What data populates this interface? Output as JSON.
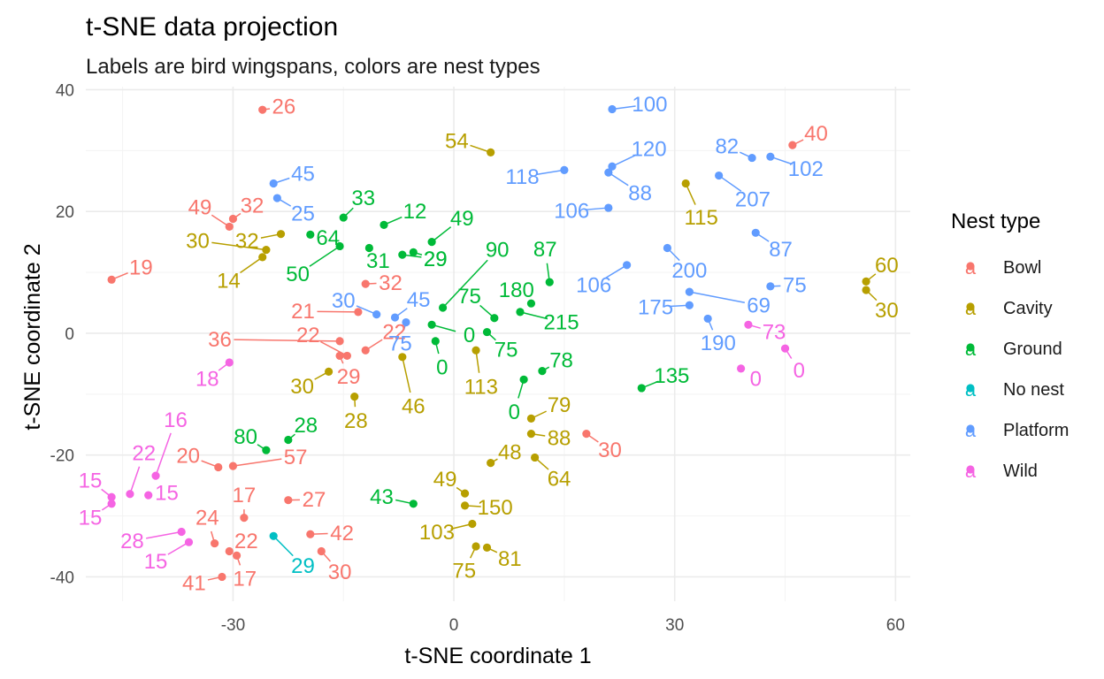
{
  "chart_data": {
    "type": "scatter",
    "title": "t-SNE data projection",
    "subtitle": "Labels are bird wingspans, colors are nest types",
    "xlabel": "t-SNE coordinate 1",
    "ylabel": "t-SNE coordinate 2",
    "xlim": [
      -50,
      62
    ],
    "ylim": [
      -44,
      40.5
    ],
    "x_ticks": [
      -30,
      0,
      30,
      60
    ],
    "y_ticks": [
      -40,
      -20,
      0,
      20,
      40
    ],
    "grid": true,
    "legend": {
      "title": "Nest type",
      "placement": "right",
      "entries": [
        {
          "name": "Bowl",
          "color": "#F8766D"
        },
        {
          "name": "Cavity",
          "color": "#B79F00"
        },
        {
          "name": "Ground",
          "color": "#00BA38"
        },
        {
          "name": "No nest",
          "color": "#00BFC4"
        },
        {
          "name": "Platform",
          "color": "#619CFF"
        },
        {
          "name": "Wild",
          "color": "#F564E3"
        }
      ]
    },
    "series": [
      {
        "name": "Bowl",
        "color": "#F8766D",
        "points": [
          {
            "x": -26,
            "y": 36.7,
            "label": "26",
            "lx": -23.1,
            "ly": 37.2
          },
          {
            "x": 46,
            "y": 30.9,
            "label": "40",
            "lx": 49.2,
            "ly": 32.8
          },
          {
            "x": -30,
            "y": 18.8,
            "label": "32",
            "lx": -27.4,
            "ly": 21.0
          },
          {
            "x": -30.5,
            "y": 17.5,
            "label": "49",
            "lx": -34.5,
            "ly": 20.7
          },
          {
            "x": -46.5,
            "y": 8.8,
            "label": "19",
            "lx": -42.5,
            "ly": 10.8
          },
          {
            "x": -12,
            "y": 8.1,
            "label": "32",
            "lx": -8.6,
            "ly": 8.3
          },
          {
            "x": -13,
            "y": 3.5,
            "label": "21",
            "lx": -20.5,
            "ly": 3.6
          },
          {
            "x": -15.5,
            "y": -1.3,
            "label": "36",
            "lx": -31.8,
            "ly": -1.0
          },
          {
            "x": -14.5,
            "y": -3.7,
            "label": "22",
            "lx": -19.8,
            "ly": -0.3
          },
          {
            "x": -12,
            "y": -2.8,
            "label": "22",
            "lx": -8.1,
            "ly": 0.2
          },
          {
            "x": -15.5,
            "y": -3.7,
            "label": "29",
            "lx": -14.3,
            "ly": -7.1
          },
          {
            "x": 18,
            "y": -16.5,
            "label": "30",
            "lx": 21.2,
            "ly": -19.2
          },
          {
            "x": -32,
            "y": -22,
            "label": "20",
            "lx": -36.1,
            "ly": -20.1
          },
          {
            "x": -30,
            "y": -21.8,
            "label": "57",
            "lx": -21.5,
            "ly": -20.3
          },
          {
            "x": -28.5,
            "y": -30.3,
            "label": "17",
            "lx": -28.5,
            "ly": -26.6
          },
          {
            "x": -22.5,
            "y": -27.4,
            "label": "27",
            "lx": -19.0,
            "ly": -27.3
          },
          {
            "x": -32.5,
            "y": -34.5,
            "label": "24",
            "lx": -33.5,
            "ly": -30.3
          },
          {
            "x": -30.5,
            "y": -35.8,
            "label": "22",
            "lx": -28.2,
            "ly": -34.1
          },
          {
            "x": -19.5,
            "y": -33,
            "label": "42",
            "lx": -15.2,
            "ly": -32.8
          },
          {
            "x": -18,
            "y": -35.8,
            "label": "30",
            "lx": -15.5,
            "ly": -39.2
          },
          {
            "x": -31.5,
            "y": -40,
            "label": "41",
            "lx": -35.3,
            "ly": -41.0
          },
          {
            "x": -29.5,
            "y": -36.5,
            "label": "17",
            "lx": -28.4,
            "ly": -40.3
          }
        ]
      },
      {
        "name": "Cavity",
        "color": "#B79F00",
        "points": [
          {
            "x": 5,
            "y": 29.7,
            "label": "54",
            "lx": 0.4,
            "ly": 31.6
          },
          {
            "x": 31.5,
            "y": 24.6,
            "label": "115",
            "lx": 33.6,
            "ly": 19.0
          },
          {
            "x": -23.5,
            "y": 16.3,
            "label": "32",
            "lx": -28.1,
            "ly": 15.2
          },
          {
            "x": -25.5,
            "y": 13.7,
            "label": "30",
            "lx": -34.8,
            "ly": 15.2
          },
          {
            "x": -26,
            "y": 12.5,
            "label": "14",
            "lx": -30.6,
            "ly": 8.6
          },
          {
            "x": 56,
            "y": 8.5,
            "label": "60",
            "lx": 58.8,
            "ly": 11.2
          },
          {
            "x": 56,
            "y": 7.1,
            "label": "30",
            "lx": 58.8,
            "ly": 3.8
          },
          {
            "x": -7,
            "y": -3.9,
            "label": "46",
            "lx": -5.5,
            "ly": -12.0
          },
          {
            "x": 3,
            "y": -2.8,
            "label": "113",
            "lx": 3.7,
            "ly": -8.8
          },
          {
            "x": -17,
            "y": -6.3,
            "label": "30",
            "lx": -20.6,
            "ly": -8.7
          },
          {
            "x": -13.5,
            "y": -10.4,
            "label": "28",
            "lx": -13.3,
            "ly": -14.4
          },
          {
            "x": 10.5,
            "y": -14,
            "label": "79",
            "lx": 14.3,
            "ly": -11.8
          },
          {
            "x": 10.5,
            "y": -16.5,
            "label": "88",
            "lx": 14.3,
            "ly": -17.2
          },
          {
            "x": 11,
            "y": -20.4,
            "label": "64",
            "lx": 14.3,
            "ly": -23.9
          },
          {
            "x": 5,
            "y": -21.3,
            "label": "48",
            "lx": 7.6,
            "ly": -19.5
          },
          {
            "x": 1.5,
            "y": -26.3,
            "label": "49",
            "lx": -1.2,
            "ly": -24.0
          },
          {
            "x": 1.5,
            "y": -28.3,
            "label": "150",
            "lx": 5.6,
            "ly": -28.6
          },
          {
            "x": 2.5,
            "y": -31.3,
            "label": "103",
            "lx": -2.3,
            "ly": -32.7
          },
          {
            "x": 3,
            "y": -35,
            "label": "75",
            "lx": 1.4,
            "ly": -39.0
          },
          {
            "x": 4.5,
            "y": -35.2,
            "label": "81",
            "lx": 7.6,
            "ly": -37.0
          }
        ]
      },
      {
        "name": "Ground",
        "color": "#00BA38",
        "points": [
          {
            "x": -15,
            "y": 19,
            "label": "33",
            "lx": -12.3,
            "ly": 22.2
          },
          {
            "x": -9.5,
            "y": 17.8,
            "label": "12",
            "lx": -5.3,
            "ly": 20.0
          },
          {
            "x": -3,
            "y": 15,
            "label": "49",
            "lx": 1.1,
            "ly": 18.9
          },
          {
            "x": -19.5,
            "y": 16.2,
            "label": "64",
            "lx": -17.1,
            "ly": 15.7
          },
          {
            "x": -15.5,
            "y": 14.3,
            "label": "50",
            "lx": -21.2,
            "ly": 9.7
          },
          {
            "x": -11.5,
            "y": 14,
            "label": "31",
            "lx": -10.3,
            "ly": 11.9
          },
          {
            "x": -7,
            "y": 12.9,
            "label": "29",
            "lx": -2.5,
            "ly": 12.2
          },
          {
            "x": -5.5,
            "y": 13.3,
            "label": "29",
            "lx": -2.5,
            "ly": 12.2
          },
          {
            "x": -1.5,
            "y": 4.2,
            "label": "90",
            "lx": 5.9,
            "ly": 13.7
          },
          {
            "x": 13,
            "y": 8.4,
            "label": "87",
            "lx": 12.4,
            "ly": 13.8
          },
          {
            "x": 10.5,
            "y": 4.9,
            "label": "180",
            "lx": 8.5,
            "ly": 7.1
          },
          {
            "x": 9,
            "y": 3.5,
            "label": "215",
            "lx": 14.6,
            "ly": 1.8
          },
          {
            "x": 5.5,
            "y": 2.5,
            "label": "75",
            "lx": 2.1,
            "ly": 6.1
          },
          {
            "x": -3,
            "y": 1.4,
            "label": "0",
            "lx": 2.1,
            "ly": -0.3
          },
          {
            "x": 4.5,
            "y": 0.2,
            "label": "75",
            "lx": 7.1,
            "ly": -2.7
          },
          {
            "x": -2.5,
            "y": -1.3,
            "label": "0",
            "lx": -1.6,
            "ly": -5.6
          },
          {
            "x": 12,
            "y": -6.2,
            "label": "78",
            "lx": 14.6,
            "ly": -4.4
          },
          {
            "x": 9.5,
            "y": -7.6,
            "label": "0",
            "lx": 8.2,
            "ly": -12.9
          },
          {
            "x": 25.5,
            "y": -9,
            "label": "135",
            "lx": 29.6,
            "ly": -7.0
          },
          {
            "x": -25.5,
            "y": -19.2,
            "label": "80",
            "lx": -28.3,
            "ly": -17.0
          },
          {
            "x": -22.5,
            "y": -17.5,
            "label": "28",
            "lx": -20.1,
            "ly": -15.1
          },
          {
            "x": -5.5,
            "y": -28,
            "label": "43",
            "lx": -9.8,
            "ly": -26.9
          }
        ]
      },
      {
        "name": "No nest",
        "color": "#00BFC4",
        "points": [
          {
            "x": -24.5,
            "y": -33.3,
            "label": "29",
            "lx": -20.5,
            "ly": -38.2
          }
        ]
      },
      {
        "name": "Platform",
        "color": "#619CFF",
        "points": [
          {
            "x": 21.5,
            "y": 36.8,
            "label": "100",
            "lx": 26.6,
            "ly": 37.6
          },
          {
            "x": 21.5,
            "y": 27.4,
            "label": "120",
            "lx": 26.5,
            "ly": 30.3
          },
          {
            "x": 21,
            "y": 26.4,
            "label": "88",
            "lx": 25.3,
            "ly": 23.0
          },
          {
            "x": 15,
            "y": 26.8,
            "label": "118",
            "lx": 9.3,
            "ly": 25.7
          },
          {
            "x": 21,
            "y": 20.6,
            "label": "106",
            "lx": 16.0,
            "ly": 20.1
          },
          {
            "x": 40.5,
            "y": 28.8,
            "label": "82",
            "lx": 37.1,
            "ly": 30.7
          },
          {
            "x": 43,
            "y": 29,
            "label": "102",
            "lx": 47.8,
            "ly": 27.0
          },
          {
            "x": 36,
            "y": 25.9,
            "label": "207",
            "lx": 40.6,
            "ly": 22.0
          },
          {
            "x": 41,
            "y": 16.5,
            "label": "87",
            "lx": 44.4,
            "ly": 13.8
          },
          {
            "x": 29,
            "y": 14,
            "label": "200",
            "lx": 32.0,
            "ly": 10.3
          },
          {
            "x": 23.5,
            "y": 11.2,
            "label": "106",
            "lx": 19.0,
            "ly": 7.9
          },
          {
            "x": 43,
            "y": 7.7,
            "label": "75",
            "lx": 46.3,
            "ly": 7.9
          },
          {
            "x": 32,
            "y": 6.8,
            "label": "69",
            "lx": 41.4,
            "ly": 4.6
          },
          {
            "x": 32,
            "y": 4.6,
            "label": "175",
            "lx": 27.4,
            "ly": 4.3
          },
          {
            "x": 34.5,
            "y": 2.4,
            "label": "190",
            "lx": 35.9,
            "ly": -1.6
          },
          {
            "x": -24.5,
            "y": 24.6,
            "label": "45",
            "lx": -20.5,
            "ly": 26.2
          },
          {
            "x": -24,
            "y": 22.2,
            "label": "25",
            "lx": -20.5,
            "ly": 19.7
          },
          {
            "x": -10.5,
            "y": 3.1,
            "label": "30",
            "lx": -15.0,
            "ly": 5.4
          },
          {
            "x": -8,
            "y": 2.6,
            "label": "45",
            "lx": -4.8,
            "ly": 5.5
          },
          {
            "x": -6.5,
            "y": 1.8,
            "label": "75",
            "lx": -7.3,
            "ly": -1.7
          }
        ]
      },
      {
        "name": "Wild",
        "color": "#F564E3",
        "points": [
          {
            "x": 40,
            "y": 1.4,
            "label": "73",
            "lx": 43.5,
            "ly": 0.2
          },
          {
            "x": 45,
            "y": -2.5,
            "label": "0",
            "lx": 46.9,
            "ly": -6.1
          },
          {
            "x": 39,
            "y": -5.8,
            "label": "0",
            "lx": 41.0,
            "ly": -7.5
          },
          {
            "x": -30.5,
            "y": -4.8,
            "label": "18",
            "lx": -33.5,
            "ly": -7.5
          },
          {
            "x": -46.5,
            "y": -26.9,
            "label": "15",
            "lx": -49.4,
            "ly": -24.2
          },
          {
            "x": -46.5,
            "y": -28,
            "label": "15",
            "lx": -49.4,
            "ly": -30.3
          },
          {
            "x": -44,
            "y": -26.4,
            "label": "22",
            "lx": -42.1,
            "ly": -19.7
          },
          {
            "x": -40.5,
            "y": -23.4,
            "label": "16",
            "lx": -37.8,
            "ly": -14.2
          },
          {
            "x": -41.5,
            "y": -26.6,
            "label": "15",
            "lx": -39.0,
            "ly": -26.2
          },
          {
            "x": -37,
            "y": -32.6,
            "label": "28",
            "lx": -43.7,
            "ly": -34.1
          },
          {
            "x": -36,
            "y": -34.3,
            "label": "15",
            "lx": -40.5,
            "ly": -37.5
          }
        ]
      }
    ]
  }
}
